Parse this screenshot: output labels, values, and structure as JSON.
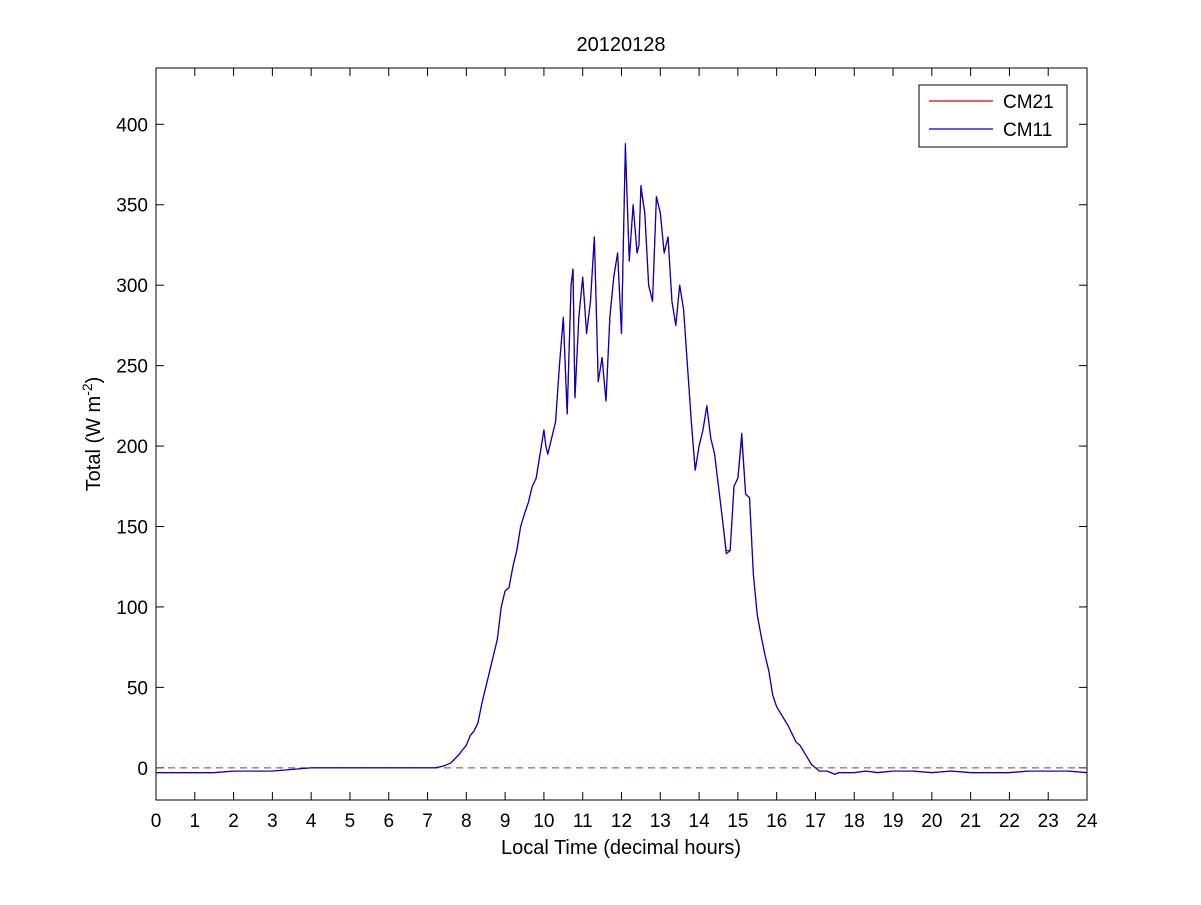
{
  "chart_data": {
    "type": "line",
    "title": "20120128",
    "xlabel": "Local Time (decimal hours)",
    "ylabel": {
      "main": "Total (W m",
      "superscript": "-2",
      "suffix": ")"
    },
    "xlim": [
      0,
      24
    ],
    "ylim": [
      -20,
      435
    ],
    "xticks": [
      0,
      1,
      2,
      3,
      4,
      5,
      6,
      7,
      8,
      9,
      10,
      11,
      12,
      13,
      14,
      15,
      16,
      17,
      18,
      19,
      20,
      21,
      22,
      23,
      24
    ],
    "yticks": [
      0,
      50,
      100,
      150,
      200,
      250,
      300,
      350,
      400
    ],
    "grid": false,
    "legend_position": "top-right",
    "reference_line": {
      "y": 0,
      "style": "dashed",
      "color": "#a03030"
    },
    "series": [
      {
        "name": "CM21",
        "color": "#dd0000",
        "x": [
          0,
          0.5,
          1,
          1.5,
          2,
          2.5,
          3,
          3.5,
          4,
          5,
          6,
          7,
          7.2,
          7.4,
          7.6,
          7.8,
          8,
          8.1,
          8.2,
          8.3,
          8.4,
          8.5,
          8.6,
          8.7,
          8.8,
          8.9,
          9,
          9.1,
          9.2,
          9.3,
          9.4,
          9.5,
          9.6,
          9.7,
          9.8,
          9.9,
          10,
          10.05,
          10.1,
          10.2,
          10.3,
          10.4,
          10.5,
          10.6,
          10.7,
          10.75,
          10.8,
          10.9,
          11,
          11.1,
          11.2,
          11.3,
          11.4,
          11.5,
          11.6,
          11.7,
          11.8,
          11.9,
          12,
          12.1,
          12.2,
          12.3,
          12.4,
          12.45,
          12.5,
          12.6,
          12.7,
          12.8,
          12.9,
          13,
          13.1,
          13.2,
          13.3,
          13.4,
          13.5,
          13.6,
          13.7,
          13.8,
          13.9,
          14,
          14.1,
          14.2,
          14.3,
          14.4,
          14.5,
          14.6,
          14.7,
          14.8,
          14.9,
          15,
          15.1,
          15.2,
          15.3,
          15.4,
          15.5,
          15.6,
          15.7,
          15.8,
          15.9,
          16,
          16.1,
          16.2,
          16.3,
          16.4,
          16.5,
          16.6,
          16.7,
          16.8,
          16.9,
          17,
          17.1,
          17.2,
          17.3,
          17.4,
          17.5,
          17.6,
          17.8,
          18,
          18.3,
          18.6,
          19,
          19.5,
          20,
          20.5,
          21,
          21.5,
          22,
          22.5,
          23,
          23.5,
          24
        ],
        "y": [
          -3,
          -3,
          -3,
          -3,
          -2,
          -2,
          -2,
          -1,
          0,
          0,
          0,
          0,
          0,
          1,
          3,
          8,
          14,
          20,
          23,
          28,
          40,
          50,
          60,
          70,
          80,
          100,
          110,
          112,
          125,
          135,
          150,
          158,
          165,
          175,
          180,
          195,
          210,
          200,
          195,
          205,
          215,
          250,
          280,
          220,
          300,
          310,
          230,
          280,
          305,
          270,
          290,
          330,
          240,
          255,
          228,
          280,
          305,
          320,
          270,
          385,
          315,
          350,
          320,
          325,
          360,
          345,
          300,
          290,
          355,
          345,
          320,
          330,
          290,
          275,
          300,
          285,
          250,
          215,
          185,
          200,
          210,
          225,
          205,
          195,
          175,
          155,
          135,
          135,
          175,
          180,
          205,
          170,
          168,
          120,
          95,
          82,
          70,
          60,
          45,
          38,
          34,
          30,
          26,
          21,
          16,
          14,
          10,
          6,
          2,
          0,
          -2,
          -2,
          -2,
          -3,
          -4,
          -3,
          -3,
          -3,
          -2,
          -3,
          -2,
          -2,
          -3,
          -2,
          -3,
          -3,
          -3,
          -2,
          -2,
          -2,
          -3
        ]
      },
      {
        "name": "CM11",
        "color": "#0000cc",
        "x": [
          0,
          0.5,
          1,
          1.5,
          2,
          2.5,
          3,
          3.5,
          4,
          5,
          6,
          7,
          7.2,
          7.4,
          7.6,
          7.8,
          8,
          8.1,
          8.2,
          8.3,
          8.4,
          8.5,
          8.6,
          8.7,
          8.8,
          8.9,
          9,
          9.1,
          9.2,
          9.3,
          9.4,
          9.5,
          9.6,
          9.7,
          9.8,
          9.9,
          10,
          10.05,
          10.1,
          10.2,
          10.3,
          10.4,
          10.5,
          10.6,
          10.7,
          10.75,
          10.8,
          10.9,
          11,
          11.1,
          11.2,
          11.3,
          11.4,
          11.5,
          11.6,
          11.7,
          11.8,
          11.9,
          12,
          12.1,
          12.2,
          12.3,
          12.4,
          12.45,
          12.5,
          12.6,
          12.7,
          12.8,
          12.9,
          13,
          13.1,
          13.2,
          13.3,
          13.4,
          13.5,
          13.6,
          13.7,
          13.8,
          13.9,
          14,
          14.1,
          14.2,
          14.3,
          14.4,
          14.5,
          14.6,
          14.7,
          14.8,
          14.9,
          15,
          15.1,
          15.2,
          15.3,
          15.4,
          15.5,
          15.6,
          15.7,
          15.8,
          15.9,
          16,
          16.1,
          16.2,
          16.3,
          16.4,
          16.5,
          16.6,
          16.7,
          16.8,
          16.9,
          17,
          17.1,
          17.2,
          17.3,
          17.4,
          17.5,
          17.6,
          17.8,
          18,
          18.3,
          18.6,
          19,
          19.5,
          20,
          20.5,
          21,
          21.5,
          22,
          22.5,
          23,
          23.5,
          24
        ],
        "y": [
          -3,
          -3,
          -3,
          -3,
          -2,
          -2,
          -2,
          -1,
          0,
          0,
          0,
          0,
          0,
          1,
          3,
          8,
          14,
          20,
          23,
          28,
          40,
          50,
          60,
          70,
          80,
          100,
          110,
          112,
          125,
          135,
          150,
          158,
          165,
          175,
          180,
          195,
          210,
          200,
          195,
          205,
          215,
          250,
          280,
          220,
          300,
          310,
          230,
          280,
          305,
          270,
          290,
          330,
          240,
          255,
          228,
          280,
          305,
          320,
          270,
          388,
          315,
          350,
          320,
          325,
          362,
          345,
          300,
          290,
          355,
          345,
          320,
          330,
          290,
          275,
          300,
          285,
          250,
          215,
          185,
          200,
          210,
          225,
          205,
          195,
          175,
          155,
          133,
          135,
          175,
          180,
          208,
          170,
          168,
          120,
          95,
          82,
          70,
          60,
          45,
          38,
          34,
          30,
          26,
          21,
          16,
          14,
          10,
          6,
          2,
          0,
          -2,
          -2,
          -2,
          -3,
          -4,
          -3,
          -3,
          -3,
          -2,
          -3,
          -2,
          -2,
          -3,
          -2,
          -3,
          -3,
          -3,
          -2,
          -2,
          -2,
          -3
        ]
      }
    ]
  }
}
